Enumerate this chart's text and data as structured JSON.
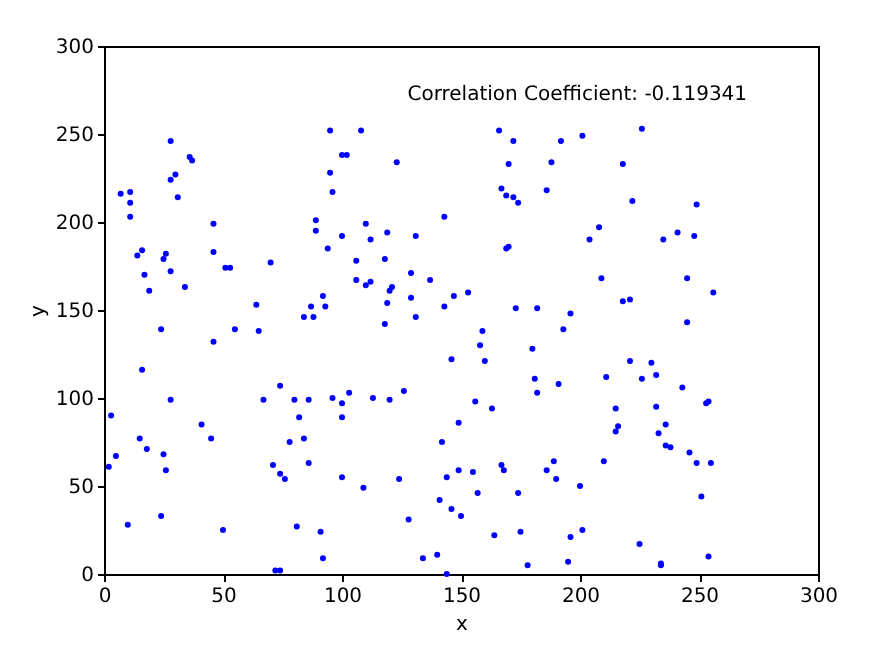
{
  "chart_data": {
    "type": "scatter",
    "xlabel": "x",
    "ylabel": "y",
    "annotations": [
      "Correlation Coefficient: -0.119341"
    ],
    "xlim": [
      0,
      300
    ],
    "ylim": [
      0,
      300
    ],
    "xticks": [
      0,
      50,
      100,
      150,
      200,
      250,
      300
    ],
    "yticks": [
      0,
      50,
      100,
      150,
      200,
      250,
      300
    ],
    "grid": false,
    "marker": "circle",
    "series": [
      {
        "color": "#0000ff",
        "x": [
          28,
          36,
          37,
          30,
          28,
          31,
          7,
          11,
          11,
          11,
          46,
          16,
          14,
          26,
          25,
          46,
          28,
          17,
          51,
          53,
          70,
          19,
          34,
          64,
          24,
          55,
          65,
          84,
          88,
          87,
          93,
          92,
          95,
          100,
          102,
          95,
          96,
          89,
          89,
          100,
          94,
          108,
          123,
          166,
          172,
          192,
          201,
          170,
          188,
          167,
          169,
          172,
          174,
          186,
          143,
          110,
          112,
          119,
          131,
          204,
          169,
          170,
          106,
          118,
          106,
          110,
          112,
          121,
          120,
          129,
          137,
          119,
          129,
          147,
          153,
          143,
          131,
          118,
          159,
          173,
          182,
          196,
          193,
          226,
          218,
          222,
          249,
          208,
          235,
          241,
          248,
          209,
          245,
          256,
          218,
          221,
          245,
          46,
          16,
          3,
          28,
          41,
          45,
          15,
          18,
          5,
          2,
          25,
          26,
          67,
          74,
          80,
          82,
          86,
          96,
          100,
          103,
          100,
          78,
          84,
          86,
          71,
          74,
          76,
          100,
          10,
          24,
          50,
          81,
          91,
          92,
          72,
          74,
          180,
          146,
          158,
          160,
          181,
          182,
          191,
          113,
          120,
          126,
          156,
          163,
          149,
          142,
          109,
          124,
          144,
          149,
          155,
          167,
          168,
          174,
          157,
          141,
          146,
          150,
          128,
          164,
          175,
          186,
          189,
          190,
          200,
          201,
          196,
          134,
          140,
          144,
          178,
          195,
          221,
          230,
          211,
          226,
          232,
          243,
          215,
          232,
          253,
          254,
          236,
          216,
          215,
          233,
          236,
          238,
          246,
          249,
          255,
          210,
          251,
          225,
          254,
          234,
          234
        ],
        "values": [
          246,
          237,
          235,
          227,
          224,
          214,
          216,
          217,
          211,
          203,
          199,
          184,
          181,
          182,
          179,
          183,
          172,
          170,
          174,
          174,
          177,
          161,
          163,
          153,
          139,
          139,
          138,
          146,
          146,
          152,
          152,
          158,
          252,
          238,
          238,
          228,
          217,
          201,
          195,
          192,
          185,
          252,
          234,
          252,
          246,
          246,
          249,
          233,
          234,
          219,
          215,
          214,
          211,
          218,
          203,
          199,
          190,
          194,
          192,
          190,
          185,
          186,
          178,
          179,
          167,
          164,
          166,
          163,
          161,
          171,
          167,
          154,
          157,
          158,
          160,
          152,
          146,
          142,
          138,
          151,
          151,
          148,
          139,
          253,
          233,
          212,
          210,
          197,
          190,
          194,
          192,
          168,
          168,
          160,
          155,
          156,
          143,
          132,
          116,
          90,
          99,
          85,
          77,
          77,
          71,
          67,
          61,
          68,
          59,
          99,
          107,
          99,
          89,
          99,
          100,
          97,
          103,
          89,
          75,
          77,
          63,
          62,
          57,
          54,
          55,
          28,
          33,
          25,
          27,
          24,
          9,
          2,
          2,
          128,
          122,
          130,
          121,
          111,
          103,
          108,
          100,
          99,
          104,
          98,
          94,
          86,
          75,
          49,
          54,
          55,
          59,
          58,
          62,
          59,
          46,
          46,
          42,
          37,
          33,
          31,
          22,
          24,
          59,
          64,
          54,
          50,
          25,
          21,
          9,
          11,
          0,
          5,
          7,
          121,
          120,
          112,
          111,
          113,
          106,
          94,
          95,
          97,
          98,
          85,
          84,
          81,
          80,
          73,
          72,
          69,
          63,
          63,
          64,
          44,
          17,
          10,
          6,
          5
        ]
      }
    ]
  }
}
